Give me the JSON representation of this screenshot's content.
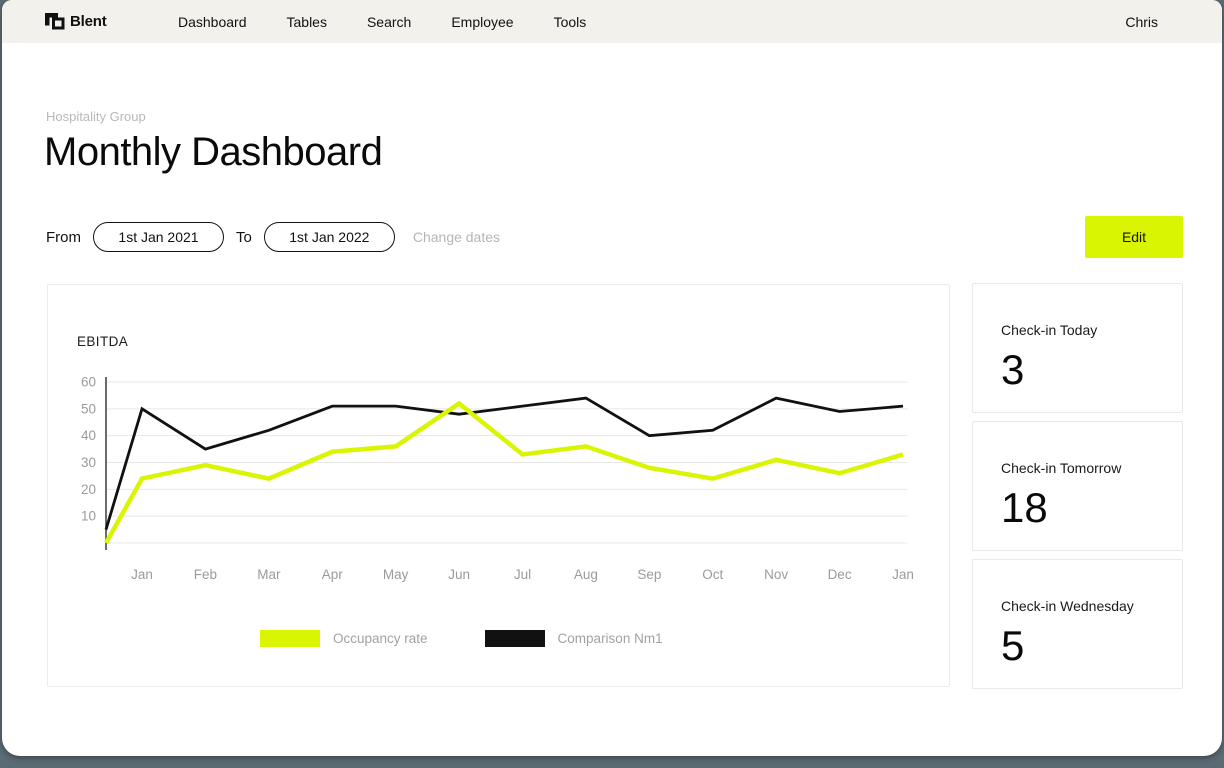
{
  "navbar": {
    "brand": "Blent",
    "items": [
      "Dashboard",
      "Tables",
      "Search",
      "Employee",
      "Tools"
    ],
    "user": "Chris"
  },
  "header": {
    "eyebrow": "Hospitality Group",
    "title": "Monthly Dashboard"
  },
  "date_filter": {
    "from_label": "From",
    "from_value": "1st Jan 2021",
    "to_label": "To",
    "to_value": "1st Jan 2022",
    "change_label": "Change dates",
    "edit_label": "Edit"
  },
  "chart_data": {
    "type": "line",
    "title": "EBITDA",
    "categories": [
      "",
      "Jan",
      "Feb",
      "Mar",
      "Apr",
      "May",
      "Jun",
      "Jul",
      "Aug",
      "Sep",
      "Oct",
      "Nov",
      "Dec",
      "Jan"
    ],
    "series": [
      {
        "name": "Occupancy rate",
        "color": "#d9f502",
        "values": [
          0,
          24,
          29,
          24,
          34,
          36,
          52,
          33,
          36,
          28,
          24,
          31,
          26,
          33
        ]
      },
      {
        "name": "Comparison Nm1",
        "color": "#111111",
        "values": [
          5,
          50,
          35,
          42,
          51,
          51,
          48,
          51,
          54,
          40,
          42,
          54,
          49,
          51
        ]
      }
    ],
    "ylim": [
      0,
      60
    ],
    "yticks": [
      10,
      20,
      30,
      40,
      50,
      60
    ],
    "grid": "horizontal",
    "legend_position": "bottom"
  },
  "cards": [
    {
      "label": "Check-in Today",
      "value": "3"
    },
    {
      "label": "Check-in Tomorrow",
      "value": "18"
    },
    {
      "label": "Check-in Wednesday",
      "value": "5"
    }
  ],
  "colors": {
    "accent": "#d9f502",
    "navbar_bg": "#f2f1ec",
    "frame_bg": "#5b6a73",
    "muted_text": "#9b9b9b"
  }
}
